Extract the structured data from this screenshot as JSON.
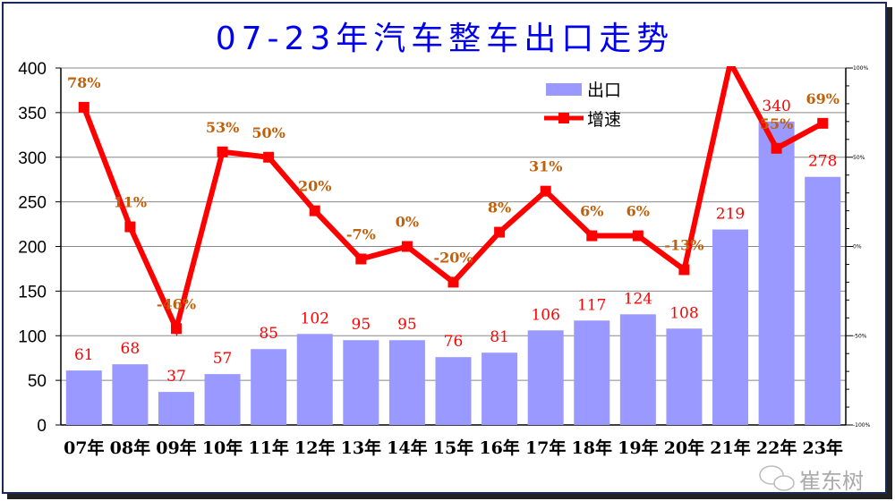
{
  "chart_data": {
    "type": "bar+line",
    "title": "07-23年汽车整车出口走势",
    "categories": [
      "07年",
      "08年",
      "09年",
      "10年",
      "11年",
      "12年",
      "13年",
      "14年",
      "15年",
      "16年",
      "17年",
      "18年",
      "19年",
      "20年",
      "21年",
      "22年",
      "23年"
    ],
    "series": [
      {
        "name": "出口",
        "type": "bar",
        "axis": "left",
        "color": "#9999ff",
        "values": [
          61,
          68,
          37,
          57,
          85,
          102,
          95,
          95,
          76,
          81,
          106,
          117,
          124,
          108,
          219,
          340,
          278
        ],
        "labels": [
          "61",
          "68",
          "37",
          "57",
          "85",
          "102",
          "95",
          "95",
          "76",
          "81",
          "106",
          "117",
          "124",
          "108",
          "219",
          "340",
          "278"
        ]
      },
      {
        "name": "增速",
        "type": "line",
        "axis": "right",
        "color": "#ff0000",
        "values": [
          78,
          11,
          -46,
          53,
          50,
          20,
          -7,
          0,
          -20,
          8,
          31,
          6,
          6,
          -13,
          103,
          55,
          69
        ],
        "labels": [
          "78%",
          "11%",
          "-46%",
          "53%",
          "50%",
          "20%",
          "-7%",
          "0%",
          "-20%",
          "8%",
          "31%",
          "6%",
          "6%",
          "-13%",
          "",
          "55%",
          "69%"
        ]
      }
    ],
    "y_left": {
      "range": [
        0,
        400
      ],
      "ticks": [
        "0",
        "50",
        "100",
        "150",
        "200",
        "250",
        "300",
        "350",
        "400"
      ]
    },
    "y_right": {
      "range": [
        -100,
        100
      ],
      "ticks": [
        "-100%",
        "-50%",
        "0%",
        "50%",
        "100%"
      ]
    },
    "grid": true,
    "legend": "top-right",
    "colors": {
      "title": "#0000ee",
      "bar_label": "#ff0000",
      "line_label": "#c0600a"
    }
  },
  "watermark": "崔东树"
}
